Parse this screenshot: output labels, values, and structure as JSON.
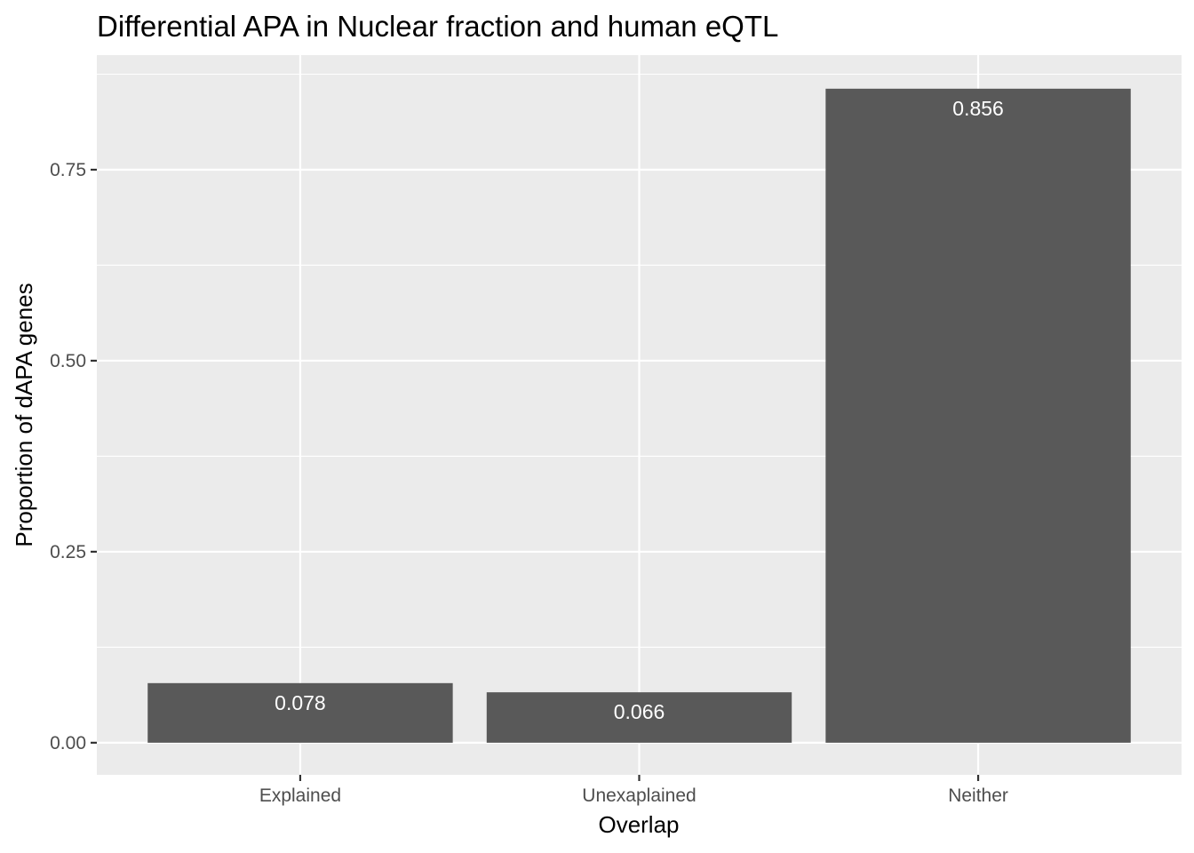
{
  "colors": {
    "panel_background": "#ebebeb",
    "grid_line": "#ffffff",
    "bar_fill": "#595959",
    "data_label": "#ffffff",
    "tick_mark": "#333333"
  },
  "chart_data": {
    "type": "bar",
    "title": "Differential APA in Nuclear fraction and human eQTL",
    "xlabel": "Overlap",
    "ylabel": "Proportion of dAPA genes",
    "categories": [
      "Explained",
      "Unexaplained",
      "Neither"
    ],
    "values": [
      0.078,
      0.066,
      0.856
    ],
    "data_labels": [
      "0.078",
      "0.066",
      "0.856"
    ],
    "ylim": [
      -0.042,
      0.9
    ],
    "yticks": [
      0,
      0.25,
      0.5,
      0.75
    ],
    "ytick_labels": [
      "0.00",
      "0.25",
      "0.50",
      "0.75"
    ],
    "grid": true,
    "legend": "none"
  }
}
